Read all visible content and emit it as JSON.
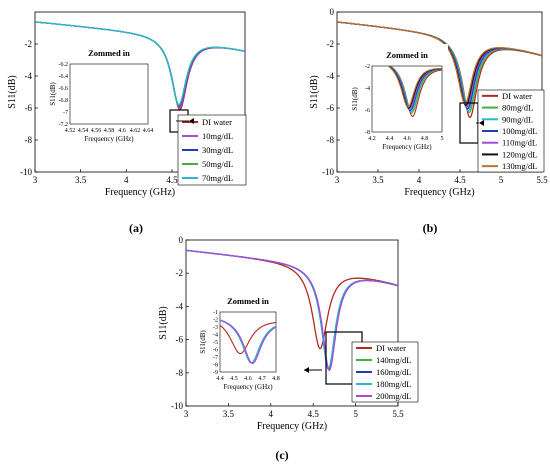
{
  "chart_data": [
    {
      "type": "line",
      "panel_label": "(a)",
      "xlabel": "Frequency (GHz)",
      "ylabel": "S11(dB)",
      "xlim": [
        3,
        5.3
      ],
      "ylim": [
        -10,
        0
      ],
      "xticks": [
        3,
        3.5,
        4,
        4.5,
        5
      ],
      "xtick_labels": [
        "3",
        "3.5",
        "4",
        "4.5",
        "5"
      ],
      "yticks": [
        -10,
        -8,
        -6,
        -4,
        -2
      ],
      "ytick_labels": [
        "-10",
        "-8",
        "-6",
        "-4",
        "-2"
      ],
      "grid": false,
      "legend_placement": "right",
      "legend": [
        "DI water",
        "10mg/dL",
        "30mg/dL",
        "50mg/dL",
        "70mg/dL"
      ],
      "series": [
        {
          "name": "DI water",
          "color": "#b4291f",
          "f0": 4.585,
          "depth": -7.15,
          "width": 0.2
        },
        {
          "name": "10mg/dL",
          "color": "#a64ad8",
          "f0": 4.582,
          "depth": -7.05,
          "width": 0.2
        },
        {
          "name": "30mg/dL",
          "color": "#1f3fb0",
          "f0": 4.578,
          "depth": -6.95,
          "width": 0.2
        },
        {
          "name": "50mg/dL",
          "color": "#41b13a",
          "f0": 4.574,
          "depth": -6.9,
          "width": 0.2
        },
        {
          "name": "70mg/dL",
          "color": "#2bb6d3",
          "f0": 4.576,
          "depth": -6.85,
          "width": 0.2
        }
      ],
      "inset": {
        "title": "Zommed in",
        "xlabel": "Frequency (GHz)",
        "ylabel": "S11(dB)",
        "xlim": [
          4.52,
          4.64
        ],
        "ylim": [
          -7.2,
          -6.2
        ],
        "xtick_labels": [
          "4.52",
          "4.54",
          "4.56",
          "4.58",
          "4.6",
          "4.62",
          "4.64"
        ],
        "ytick_labels": [
          "-6.2",
          "-6.4",
          "-6.6",
          "-6.8",
          "-7",
          "-7.2"
        ]
      }
    },
    {
      "type": "line",
      "panel_label": "(b)",
      "xlabel": "Frequency (GHz)",
      "ylabel": "S11(dB)",
      "xlim": [
        3,
        5.5
      ],
      "ylim": [
        -10,
        0
      ],
      "xticks": [
        3,
        3.5,
        4,
        4.5,
        5,
        5.5
      ],
      "xtick_labels": [
        "3",
        "3.5",
        "4",
        "4.5",
        "5",
        "5.5"
      ],
      "yticks": [
        -10,
        -8,
        -6,
        -4,
        -2,
        0
      ],
      "ytick_labels": [
        "-10",
        "-8",
        "-6",
        "-4",
        "-2",
        "0"
      ],
      "grid": false,
      "legend_placement": "right",
      "legend": [
        "DI water",
        "80mg/dL",
        "90mg/dL",
        "100mg/dL",
        "110mg/dL",
        "120mg/dL",
        "130mg/dL"
      ],
      "series": [
        {
          "name": "DI water",
          "color": "#b4291f",
          "f0": 4.62,
          "depth": -7.6,
          "width": 0.22
        },
        {
          "name": "80mg/dL",
          "color": "#41b13a",
          "f0": 4.61,
          "depth": -7.3,
          "width": 0.22
        },
        {
          "name": "90mg/dL",
          "color": "#2bb6d3",
          "f0": 4.6,
          "depth": -7.2,
          "width": 0.22
        },
        {
          "name": "100mg/dL",
          "color": "#1f3fb0",
          "f0": 4.59,
          "depth": -7.1,
          "width": 0.22
        },
        {
          "name": "110mg/dL",
          "color": "#a64ad8",
          "f0": 4.58,
          "depth": -7.0,
          "width": 0.22
        },
        {
          "name": "120mg/dL",
          "color": "#111111",
          "f0": 4.57,
          "depth": -6.9,
          "width": 0.22
        },
        {
          "name": "130mg/dL",
          "color": "#b8742a",
          "f0": 4.56,
          "depth": -6.8,
          "width": 0.22
        }
      ],
      "inset": {
        "title": "Zommed in",
        "xlabel": "Frequency (GHz)",
        "ylabel": "S11(dB)",
        "xlim": [
          4.1,
          5
        ],
        "ylim": [
          -8,
          -2
        ],
        "xtick_labels": [
          "4.2",
          "4.4",
          "4.6",
          "4.8",
          "5"
        ],
        "ytick_labels": [
          "-2",
          "-4",
          "-6",
          "-8"
        ]
      }
    },
    {
      "type": "line",
      "panel_label": "(c)",
      "xlabel": "Frequency (GHz)",
      "ylabel": "S11(dB)",
      "xlim": [
        3,
        5.5
      ],
      "ylim": [
        -10,
        0
      ],
      "xticks": [
        3,
        3.5,
        4,
        4.5,
        5,
        5.5
      ],
      "xtick_labels": [
        "3",
        "3.5",
        "4",
        "4.5",
        "5",
        "5.5"
      ],
      "yticks": [
        -10,
        -8,
        -6,
        -4,
        -2,
        0
      ],
      "ytick_labels": [
        "-10",
        "-8",
        "-6",
        "-4",
        "-2",
        "0"
      ],
      "grid": false,
      "legend_placement": "right",
      "legend": [
        "DI water",
        "140mg/dL",
        "160mg/dL",
        "180mg/dL",
        "200mg/dL"
      ],
      "series": [
        {
          "name": "DI water",
          "color": "#b4291f",
          "f0": 4.58,
          "depth": -7.6,
          "width": 0.22
        },
        {
          "name": "140mg/dL",
          "color": "#41b13a",
          "f0": 4.68,
          "depth": -8.7,
          "width": 0.2
        },
        {
          "name": "160mg/dL",
          "color": "#1f3fb0",
          "f0": 4.68,
          "depth": -8.75,
          "width": 0.2
        },
        {
          "name": "180mg/dL",
          "color": "#2bb6d3",
          "f0": 4.68,
          "depth": -8.7,
          "width": 0.2
        },
        {
          "name": "200mg/dL",
          "color": "#a64ad8",
          "f0": 4.69,
          "depth": -8.8,
          "width": 0.2
        }
      ],
      "inset": {
        "title": "Zommed in",
        "xlabel": "Frequency (GHz)",
        "ylabel": "S11(dB)",
        "xlim": [
          4.4,
          4.9
        ],
        "ylim": [
          -9,
          -1
        ],
        "xtick_labels": [
          "4.4",
          "4.5",
          "4.6",
          "4.7",
          "4.8"
        ],
        "ytick_labels": [
          "-1",
          "-2",
          "-3",
          "-4",
          "-5",
          "-6",
          "-7",
          "-8",
          "-9"
        ]
      }
    }
  ]
}
